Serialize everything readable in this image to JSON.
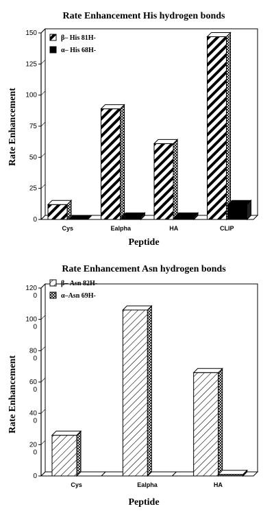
{
  "chart_data": [
    {
      "type": "bar",
      "title": "Rate Enhancement His hydrogen bonds",
      "xlabel": "Peptide",
      "ylabel": "Rate Enhancement",
      "ylim": [
        0,
        150
      ],
      "yticks": [
        "0",
        "25",
        "50",
        "75",
        "100",
        "125",
        "150"
      ],
      "categories": [
        "Cys",
        "Ealpha",
        "HA",
        "CLIP"
      ],
      "legend_position": "top-left",
      "series": [
        {
          "name": "β– His 81H-",
          "values": [
            12,
            89,
            61,
            147
          ],
          "pattern": "thick-diagonal",
          "color": "#000000"
        },
        {
          "name": "α– His 68H-",
          "values": [
            0,
            2,
            2,
            12
          ],
          "pattern": "solid",
          "color": "#000000"
        }
      ]
    },
    {
      "type": "bar",
      "title": "Rate Enhancement Asn hydrogen bonds",
      "xlabel": "Peptide",
      "ylabel": "Rate Enhancement",
      "ylim": [
        0,
        120
      ],
      "yticks": [
        {
          "major": "0",
          "minor": ""
        },
        {
          "major": "20",
          "minor": "0"
        },
        {
          "major": "40",
          "minor": "0"
        },
        {
          "major": "60",
          "minor": "0"
        },
        {
          "major": "80",
          "minor": "0"
        },
        {
          "major": "100",
          "minor": "0"
        },
        {
          "major": "120",
          "minor": "0"
        }
      ],
      "categories": [
        "Cys",
        "Ealpha",
        "HA"
      ],
      "legend_position": "top-left",
      "series": [
        {
          "name": "β– Asn 82H-",
          "values": [
            26,
            106,
            66
          ],
          "pattern": "thin-diagonal",
          "color": "#000000"
        },
        {
          "name": "α–Asn 69H-",
          "values": [
            0,
            0,
            1
          ],
          "pattern": "crosshatch",
          "color": "#000000"
        }
      ]
    }
  ]
}
